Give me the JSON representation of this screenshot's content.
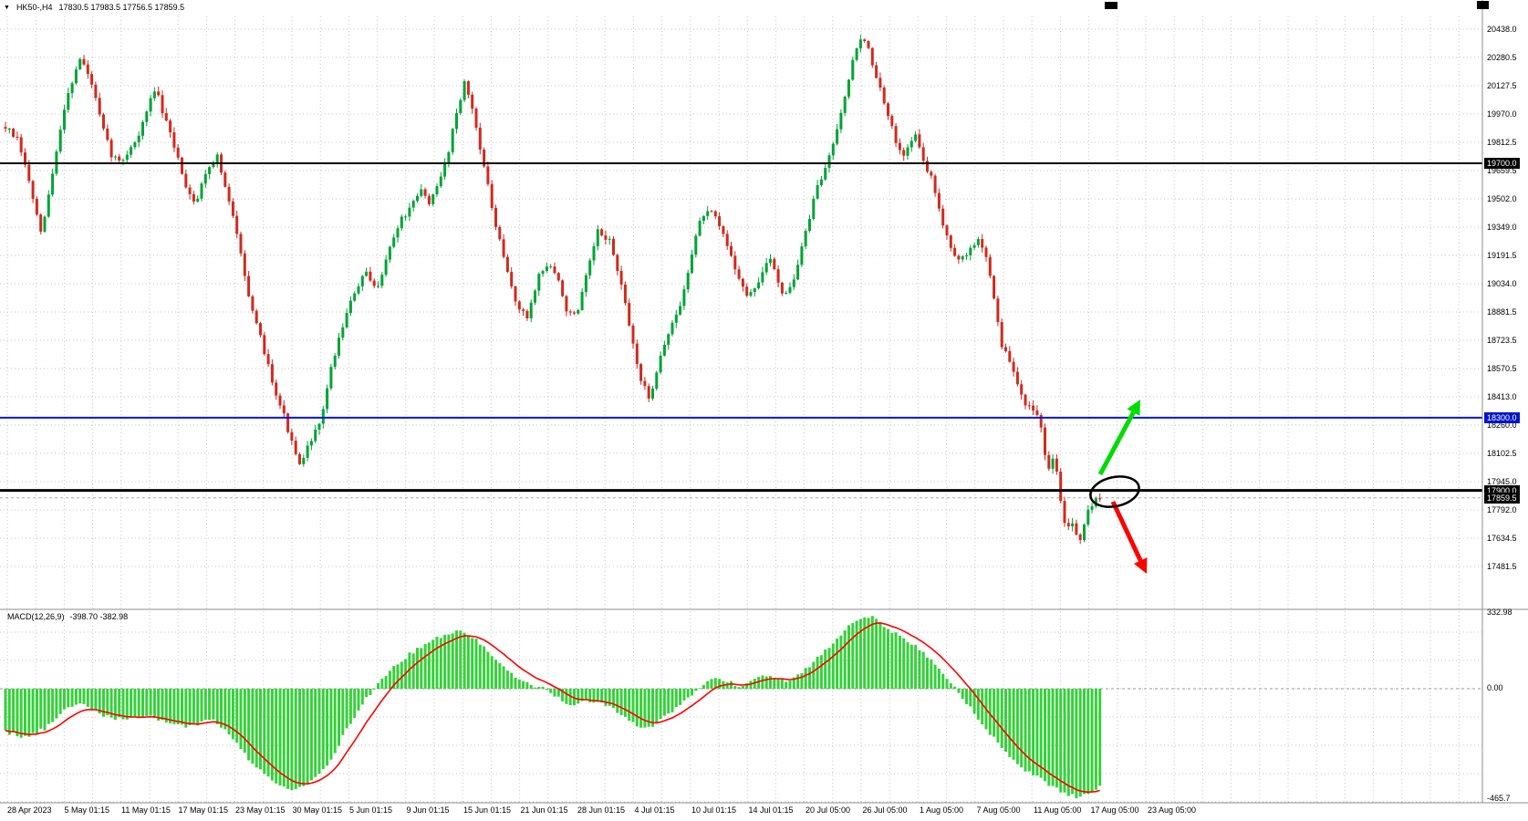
{
  "header": {
    "dropdown_icon": "▼",
    "symbol_period": "HK50-,H4",
    "ohlc": "17830.5 17983.5 17756.5 17859.5"
  },
  "price_axis": {
    "ticks": [
      "20438.0",
      "20280.5",
      "20127.5",
      "19970.0",
      "19812.5",
      "19659.5",
      "19502.0",
      "19349.0",
      "19191.5",
      "19034.0",
      "18881.5",
      "18723.5",
      "18570.5",
      "18413.0",
      "18260.0",
      "18102.5",
      "17945.0",
      "17792.0",
      "17634.5",
      "17481.5"
    ],
    "highlights": [
      {
        "value": 19700.0,
        "label": "19700.0",
        "bg": "#000000"
      },
      {
        "value": 18300.0,
        "label": "18300.0",
        "bg": "#0014c8"
      },
      {
        "value": 17900.0,
        "label": "17900.0",
        "bg": "#000000"
      },
      {
        "value": 17859.5,
        "label": "17859.5",
        "bg": "#000000"
      }
    ]
  },
  "time_axis": {
    "labels": [
      "28 Apr 2023",
      "5 May 01:15",
      "11 May 01:15",
      "17 May 01:15",
      "23 May 01:15",
      "30 May 01:15",
      "5 Jun 01:15",
      "9 Jun 01:15",
      "15 Jun 01:15",
      "21 Jun 01:15",
      "28 Jun 01:15",
      "4 Jul 01:15",
      "10 Jul 01:15",
      "14 Jul 01:15",
      "20 Jul 05:00",
      "26 Jul 05:00",
      "1 Aug 05:00",
      "7 Aug 05:00",
      "11 Aug 05:00",
      "17 Aug 05:00",
      "23 Aug 05:00"
    ]
  },
  "indicator": {
    "label": "MACD(12,26,9)",
    "values": "-398.70 -382.98",
    "axis": {
      "top": "332.98",
      "zero": "0.00",
      "bottom": "-465.7"
    }
  },
  "levels": [
    {
      "name": "resistance-19700",
      "price": 19700.0,
      "color": "#000000",
      "width": 2
    },
    {
      "name": "support-18300",
      "price": 18300.0,
      "color": "#0014e6",
      "width": 2
    },
    {
      "name": "support-17900",
      "price": 17900.0,
      "color": "#000000",
      "width": 3
    }
  ],
  "current_price": 17859.5,
  "annotations": {
    "up_arrow_color": "#00dc00",
    "down_arrow_color": "#ff0000",
    "ellipse_color": "#000000"
  },
  "colors": {
    "bull": "#00a337",
    "bear": "#d02a1e",
    "grid": "#c6c6c6",
    "histogram": "#35d13a",
    "signal": "#ff0000",
    "separator": "#8c8c8c",
    "current_price_line": "#aaaaaa"
  },
  "chart_data": {
    "type": "candlestick",
    "symbol": "HK50",
    "timeframe": "H4",
    "ohlc_display": {
      "open": 17830.5,
      "high": 17983.5,
      "low": 17756.5,
      "close": 17859.5
    },
    "price_axis_range": [
      17481.5,
      20438.0
    ],
    "price_path": [
      [
        6,
        19900
      ],
      [
        20,
        19820
      ],
      [
        32,
        19600
      ],
      [
        45,
        19300
      ],
      [
        58,
        19650
      ],
      [
        72,
        20050
      ],
      [
        88,
        20280
      ],
      [
        100,
        20150
      ],
      [
        112,
        19900
      ],
      [
        122,
        19750
      ],
      [
        132,
        19700
      ],
      [
        142,
        19780
      ],
      [
        152,
        19850
      ],
      [
        162,
        20000
      ],
      [
        170,
        20120
      ],
      [
        180,
        19950
      ],
      [
        192,
        19780
      ],
      [
        205,
        19560
      ],
      [
        215,
        19480
      ],
      [
        225,
        19650
      ],
      [
        238,
        19740
      ],
      [
        250,
        19500
      ],
      [
        262,
        19280
      ],
      [
        275,
        18900
      ],
      [
        288,
        18700
      ],
      [
        300,
        18480
      ],
      [
        312,
        18300
      ],
      [
        322,
        18120
      ],
      [
        330,
        18020
      ],
      [
        340,
        18180
      ],
      [
        350,
        18250
      ],
      [
        362,
        18550
      ],
      [
        375,
        18800
      ],
      [
        388,
        18980
      ],
      [
        400,
        19100
      ],
      [
        412,
        19000
      ],
      [
        425,
        19200
      ],
      [
        438,
        19380
      ],
      [
        450,
        19450
      ],
      [
        462,
        19550
      ],
      [
        472,
        19480
      ],
      [
        482,
        19600
      ],
      [
        492,
        19780
      ],
      [
        502,
        20020
      ],
      [
        510,
        20150
      ],
      [
        520,
        19950
      ],
      [
        530,
        19700
      ],
      [
        542,
        19380
      ],
      [
        555,
        19120
      ],
      [
        568,
        18900
      ],
      [
        578,
        18850
      ],
      [
        590,
        19080
      ],
      [
        602,
        19150
      ],
      [
        612,
        19050
      ],
      [
        622,
        18880
      ],
      [
        632,
        18850
      ],
      [
        645,
        19120
      ],
      [
        655,
        19320
      ],
      [
        668,
        19280
      ],
      [
        680,
        19050
      ],
      [
        692,
        18750
      ],
      [
        703,
        18500
      ],
      [
        712,
        18400
      ],
      [
        724,
        18650
      ],
      [
        736,
        18800
      ],
      [
        748,
        18950
      ],
      [
        760,
        19250
      ],
      [
        770,
        19420
      ],
      [
        782,
        19420
      ],
      [
        795,
        19280
      ],
      [
        808,
        19100
      ],
      [
        820,
        18950
      ],
      [
        832,
        19060
      ],
      [
        845,
        19180
      ],
      [
        858,
        18980
      ],
      [
        870,
        19050
      ],
      [
        882,
        19300
      ],
      [
        895,
        19550
      ],
      [
        908,
        19720
      ],
      [
        920,
        19950
      ],
      [
        932,
        20200
      ],
      [
        942,
        20400
      ],
      [
        952,
        20330
      ],
      [
        962,
        20150
      ],
      [
        972,
        19980
      ],
      [
        982,
        19820
      ],
      [
        992,
        19750
      ],
      [
        1002,
        19870
      ],
      [
        1012,
        19720
      ],
      [
        1022,
        19600
      ],
      [
        1032,
        19400
      ],
      [
        1042,
        19250
      ],
      [
        1052,
        19150
      ],
      [
        1062,
        19220
      ],
      [
        1072,
        19280
      ],
      [
        1082,
        19180
      ],
      [
        1090,
        18950
      ],
      [
        1098,
        18700
      ],
      [
        1106,
        18620
      ],
      [
        1114,
        18500
      ],
      [
        1122,
        18400
      ],
      [
        1132,
        18330
      ],
      [
        1140,
        18280
      ],
      [
        1148,
        17990
      ],
      [
        1155,
        18100
      ],
      [
        1162,
        17880
      ],
      [
        1169,
        17680
      ],
      [
        1176,
        17730
      ],
      [
        1183,
        17620
      ],
      [
        1190,
        17760
      ],
      [
        1197,
        17820
      ],
      [
        1203,
        17880
      ],
      [
        1207,
        17859.5
      ]
    ],
    "macd": {
      "params": [
        12,
        26,
        9
      ],
      "current_macd": -398.7,
      "current_signal": -382.98,
      "axis_range": [
        -465.7,
        332.98
      ],
      "histogram_path": [
        [
          6,
          -180
        ],
        [
          28,
          -200
        ],
        [
          50,
          -165
        ],
        [
          70,
          -90
        ],
        [
          90,
          -60
        ],
        [
          110,
          -105
        ],
        [
          135,
          -130
        ],
        [
          160,
          -110
        ],
        [
          185,
          -140
        ],
        [
          210,
          -160
        ],
        [
          232,
          -120
        ],
        [
          252,
          -190
        ],
        [
          272,
          -290
        ],
        [
          295,
          -370
        ],
        [
          320,
          -420
        ],
        [
          340,
          -390
        ],
        [
          360,
          -310
        ],
        [
          380,
          -170
        ],
        [
          398,
          -60
        ],
        [
          412,
          10
        ],
        [
          430,
          90
        ],
        [
          450,
          155
        ],
        [
          470,
          205
        ],
        [
          490,
          240
        ],
        [
          508,
          255
        ],
        [
          522,
          215
        ],
        [
          538,
          150
        ],
        [
          552,
          95
        ],
        [
          566,
          45
        ],
        [
          580,
          20
        ],
        [
          596,
          0
        ],
        [
          610,
          -35
        ],
        [
          625,
          -65
        ],
        [
          640,
          -55
        ],
        [
          658,
          -50
        ],
        [
          672,
          -85
        ],
        [
          688,
          -130
        ],
        [
          702,
          -160
        ],
        [
          716,
          -150
        ],
        [
          732,
          -110
        ],
        [
          748,
          -60
        ],
        [
          762,
          -15
        ],
        [
          775,
          30
        ],
        [
          788,
          50
        ],
        [
          800,
          28
        ],
        [
          812,
          10
        ],
        [
          825,
          40
        ],
        [
          838,
          62
        ],
        [
          850,
          48
        ],
        [
          862,
          28
        ],
        [
          875,
          60
        ],
        [
          890,
          110
        ],
        [
          905,
          170
        ],
        [
          920,
          232
        ],
        [
          935,
          292
        ],
        [
          948,
          322
        ],
        [
          960,
          308
        ],
        [
          972,
          270
        ],
        [
          985,
          232
        ],
        [
          998,
          200
        ],
        [
          1010,
          168
        ],
        [
          1022,
          120
        ],
        [
          1035,
          62
        ],
        [
          1048,
          0
        ],
        [
          1060,
          -60
        ],
        [
          1072,
          -122
        ],
        [
          1085,
          -182
        ],
        [
          1098,
          -242
        ],
        [
          1110,
          -292
        ],
        [
          1122,
          -332
        ],
        [
          1135,
          -362
        ],
        [
          1148,
          -392
        ],
        [
          1160,
          -420
        ],
        [
          1172,
          -440
        ],
        [
          1184,
          -452
        ],
        [
          1196,
          -432
        ],
        [
          1207,
          -398.7
        ]
      ]
    }
  }
}
